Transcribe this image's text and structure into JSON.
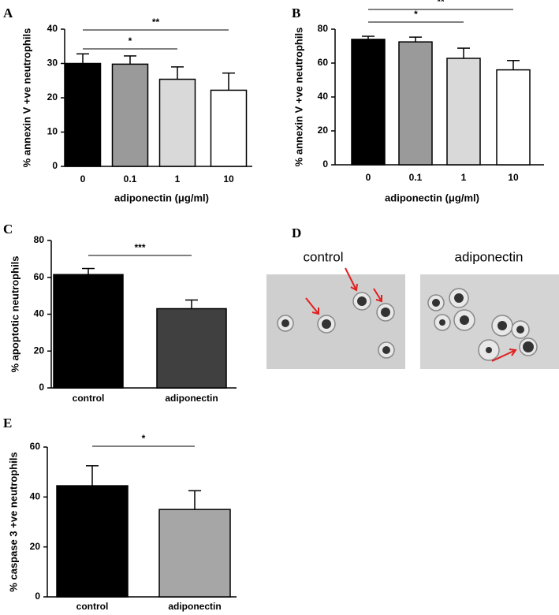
{
  "chart_data": [
    {
      "type": "bar",
      "panel": "A",
      "y_label": "% annexin V +ve neutrophils",
      "x_label": "adiponectin (μg/ml)",
      "categories": [
        "0",
        "0.1",
        "1",
        "10"
      ],
      "values": [
        30,
        29.8,
        25.4,
        22.2
      ],
      "errors": [
        2.8,
        2.4,
        3.6,
        5.0
      ],
      "colors": [
        "#000000",
        "#9a9a9a",
        "#d9d9d9",
        "#ffffff"
      ],
      "ylim": [
        0,
        40
      ],
      "yticks": [
        0,
        10,
        20,
        30,
        40
      ],
      "annotations": [
        {
          "text": "**",
          "between": [
            "0",
            "10"
          ]
        },
        {
          "text": "*",
          "between": [
            "0",
            "1"
          ]
        }
      ]
    },
    {
      "type": "bar",
      "panel": "B",
      "y_label": "% annexin V +ve neutrophils",
      "x_label": "adiponectin (μg/ml)",
      "categories": [
        "0",
        "0.1",
        "1",
        "10"
      ],
      "values": [
        74,
        72.5,
        62.8,
        56
      ],
      "errors": [
        1.8,
        2.8,
        6,
        5.5
      ],
      "colors": [
        "#000000",
        "#9a9a9a",
        "#d9d9d9",
        "#ffffff"
      ],
      "ylim": [
        0,
        80
      ],
      "yticks": [
        0,
        20,
        40,
        60,
        80
      ],
      "annotations": [
        {
          "text": "**",
          "between": [
            "0",
            "10"
          ]
        },
        {
          "text": "*",
          "between": [
            "0",
            "1"
          ]
        }
      ]
    },
    {
      "type": "bar",
      "panel": "C",
      "y_label": "% apoptotic neutrophils",
      "categories": [
        "control",
        "adiponectin"
      ],
      "values": [
        61.5,
        43
      ],
      "errors": [
        3.3,
        4.7
      ],
      "colors": [
        "#000000",
        "#404040"
      ],
      "ylim": [
        0,
        80
      ],
      "yticks": [
        0,
        20,
        40,
        60,
        80
      ],
      "annotations": [
        {
          "text": "***",
          "between": [
            "control",
            "adiponectin"
          ]
        }
      ]
    },
    {
      "type": "bar",
      "panel": "E",
      "y_label": "% caspase 3 +ve neutrophils",
      "categories": [
        "control",
        "adiponectin"
      ],
      "values": [
        44.5,
        35
      ],
      "errors": [
        8,
        7.5
      ],
      "colors": [
        "#000000",
        "#a6a6a6"
      ],
      "ylim": [
        0,
        60
      ],
      "yticks": [
        0,
        20,
        40,
        60
      ],
      "annotations": [
        {
          "text": "*",
          "between": [
            "control",
            "adiponectin"
          ]
        }
      ]
    }
  ],
  "images": {
    "panel": "D",
    "labels": [
      "control",
      "adiponectin"
    ]
  }
}
